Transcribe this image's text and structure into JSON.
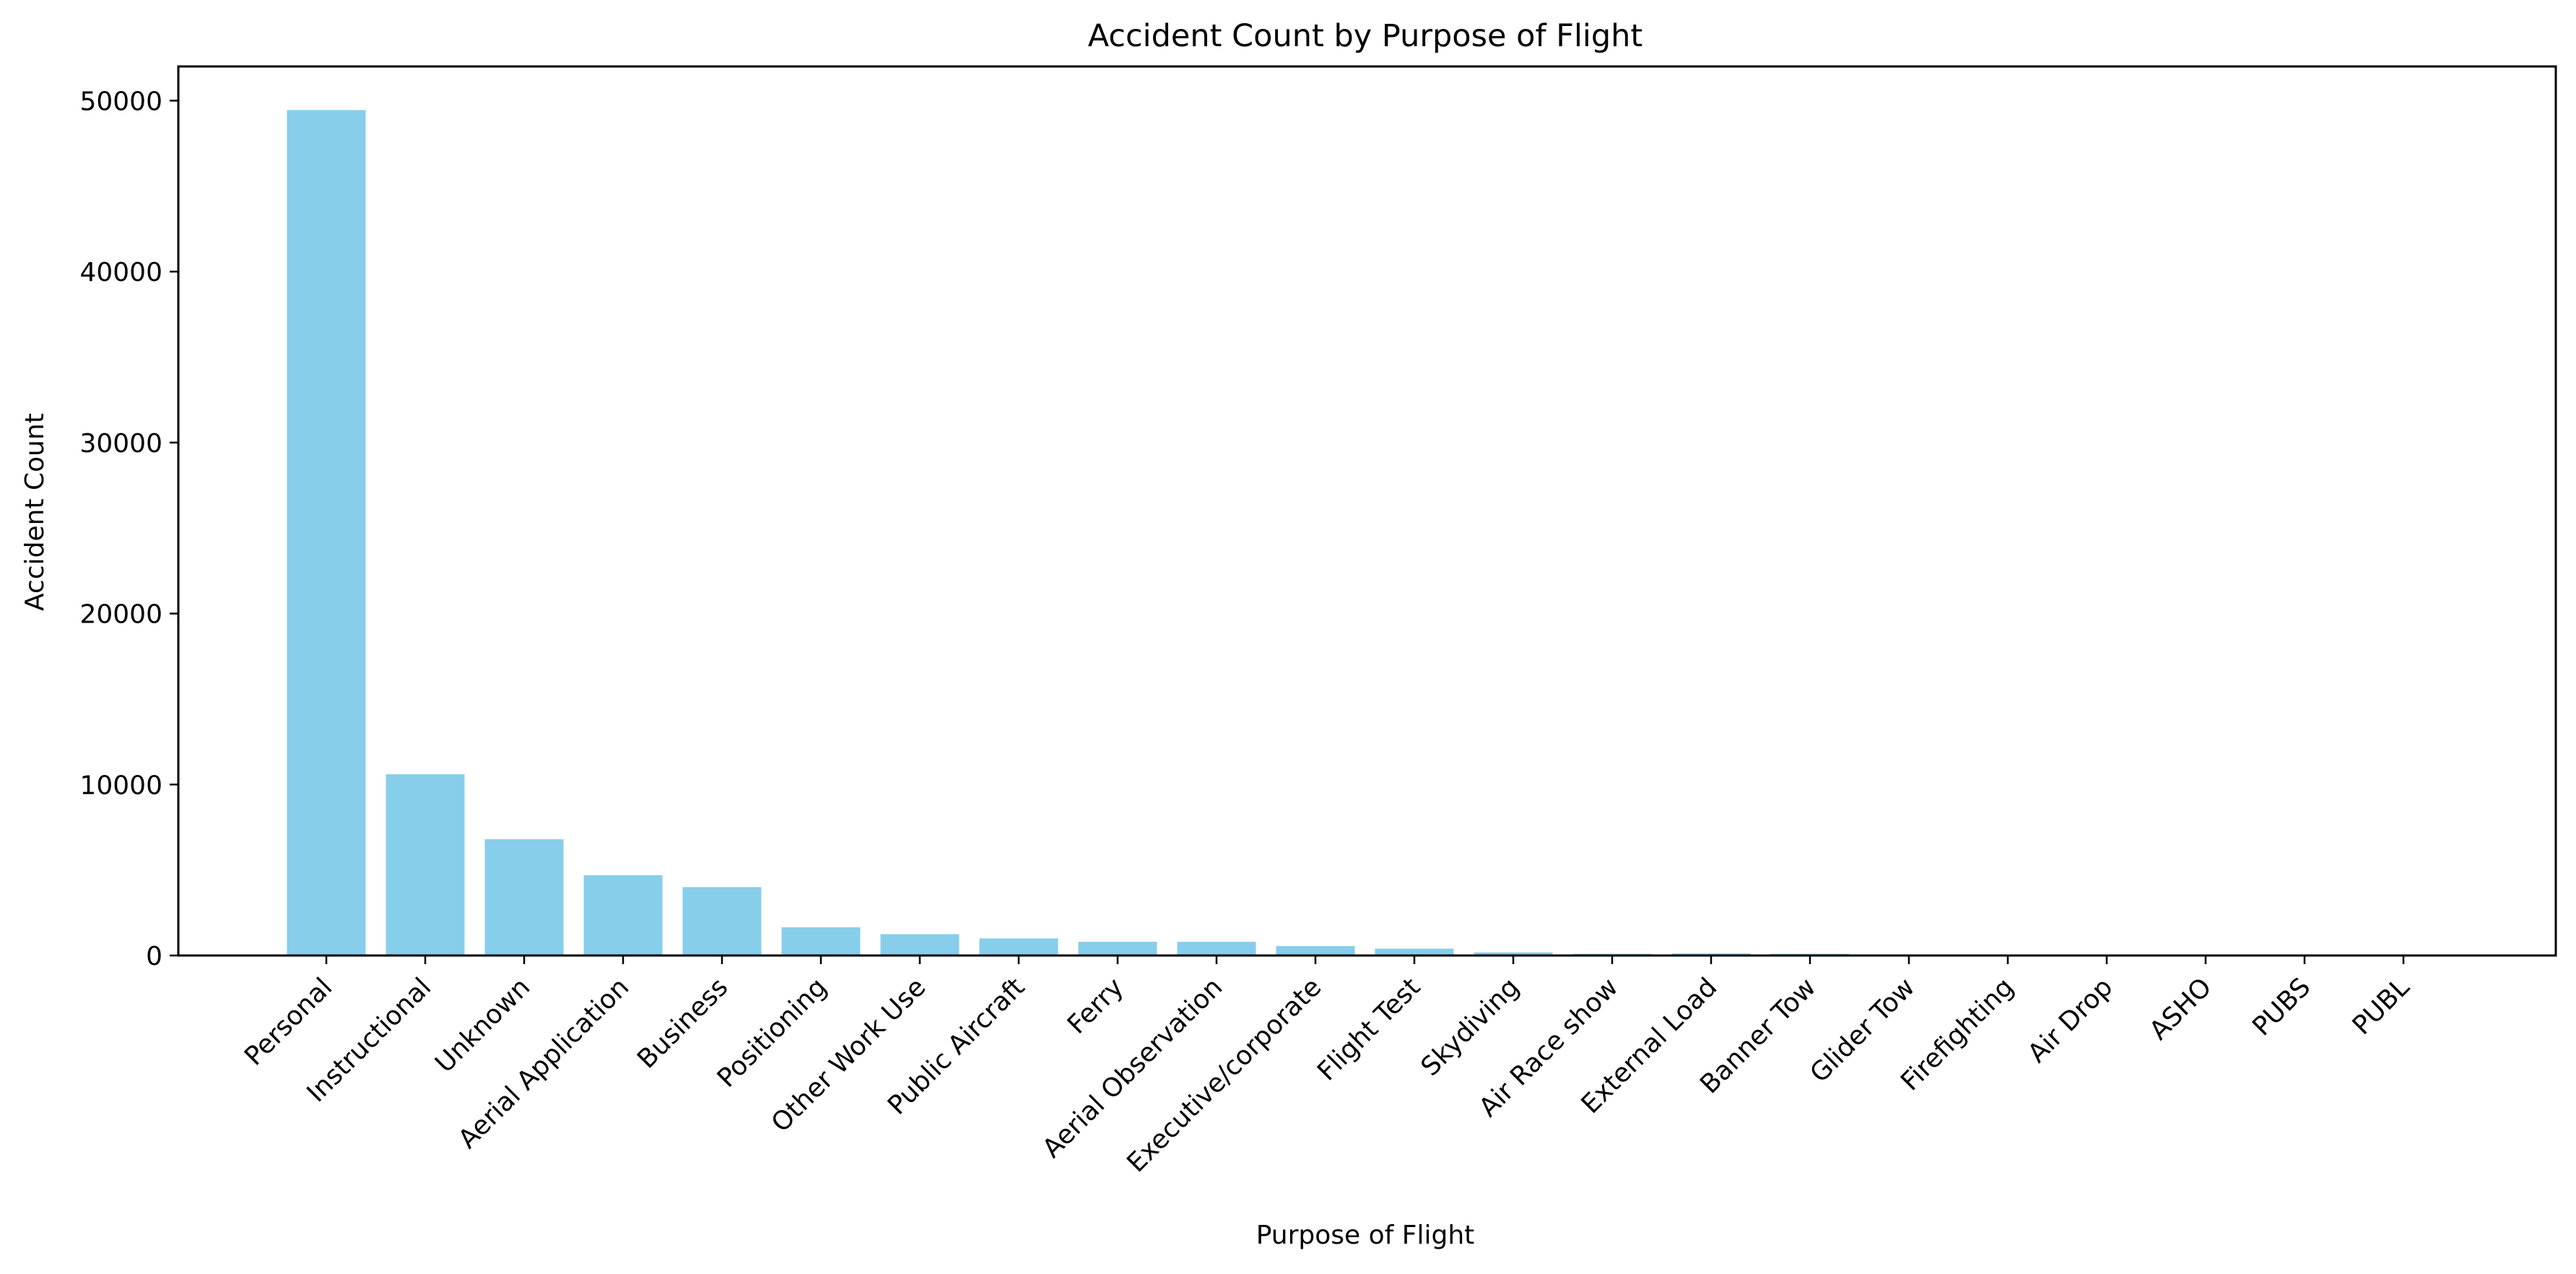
{
  "chart_data": {
    "type": "bar",
    "title": "Accident Count by Purpose of Flight",
    "xlabel": "Purpose of Flight",
    "ylabel": "Accident Count",
    "ylim": [
      0,
      52000
    ],
    "yticks": [
      "0",
      "10000",
      "20000",
      "30000",
      "40000",
      "50000"
    ],
    "grid": false,
    "bar_color": "#87ceeb",
    "categories": [
      "Personal",
      "Instructional",
      "Unknown",
      "Aerial Application",
      "Business",
      "Positioning",
      "Other Work Use",
      "Public Aircraft",
      "Ferry",
      "Aerial Observation",
      "Executive/corporate",
      "Flight Test",
      "Skydiving",
      "Air Race show",
      "External Load",
      "Banner Tow",
      "Glider Tow",
      "Firefighting",
      "Air Drop",
      "ASHO",
      "PUBS",
      "PUBL"
    ],
    "values": [
      49450,
      10600,
      6800,
      4700,
      4000,
      1650,
      1250,
      1000,
      800,
      800,
      550,
      400,
      180,
      100,
      120,
      100,
      50,
      40,
      10,
      6,
      4,
      1
    ]
  }
}
